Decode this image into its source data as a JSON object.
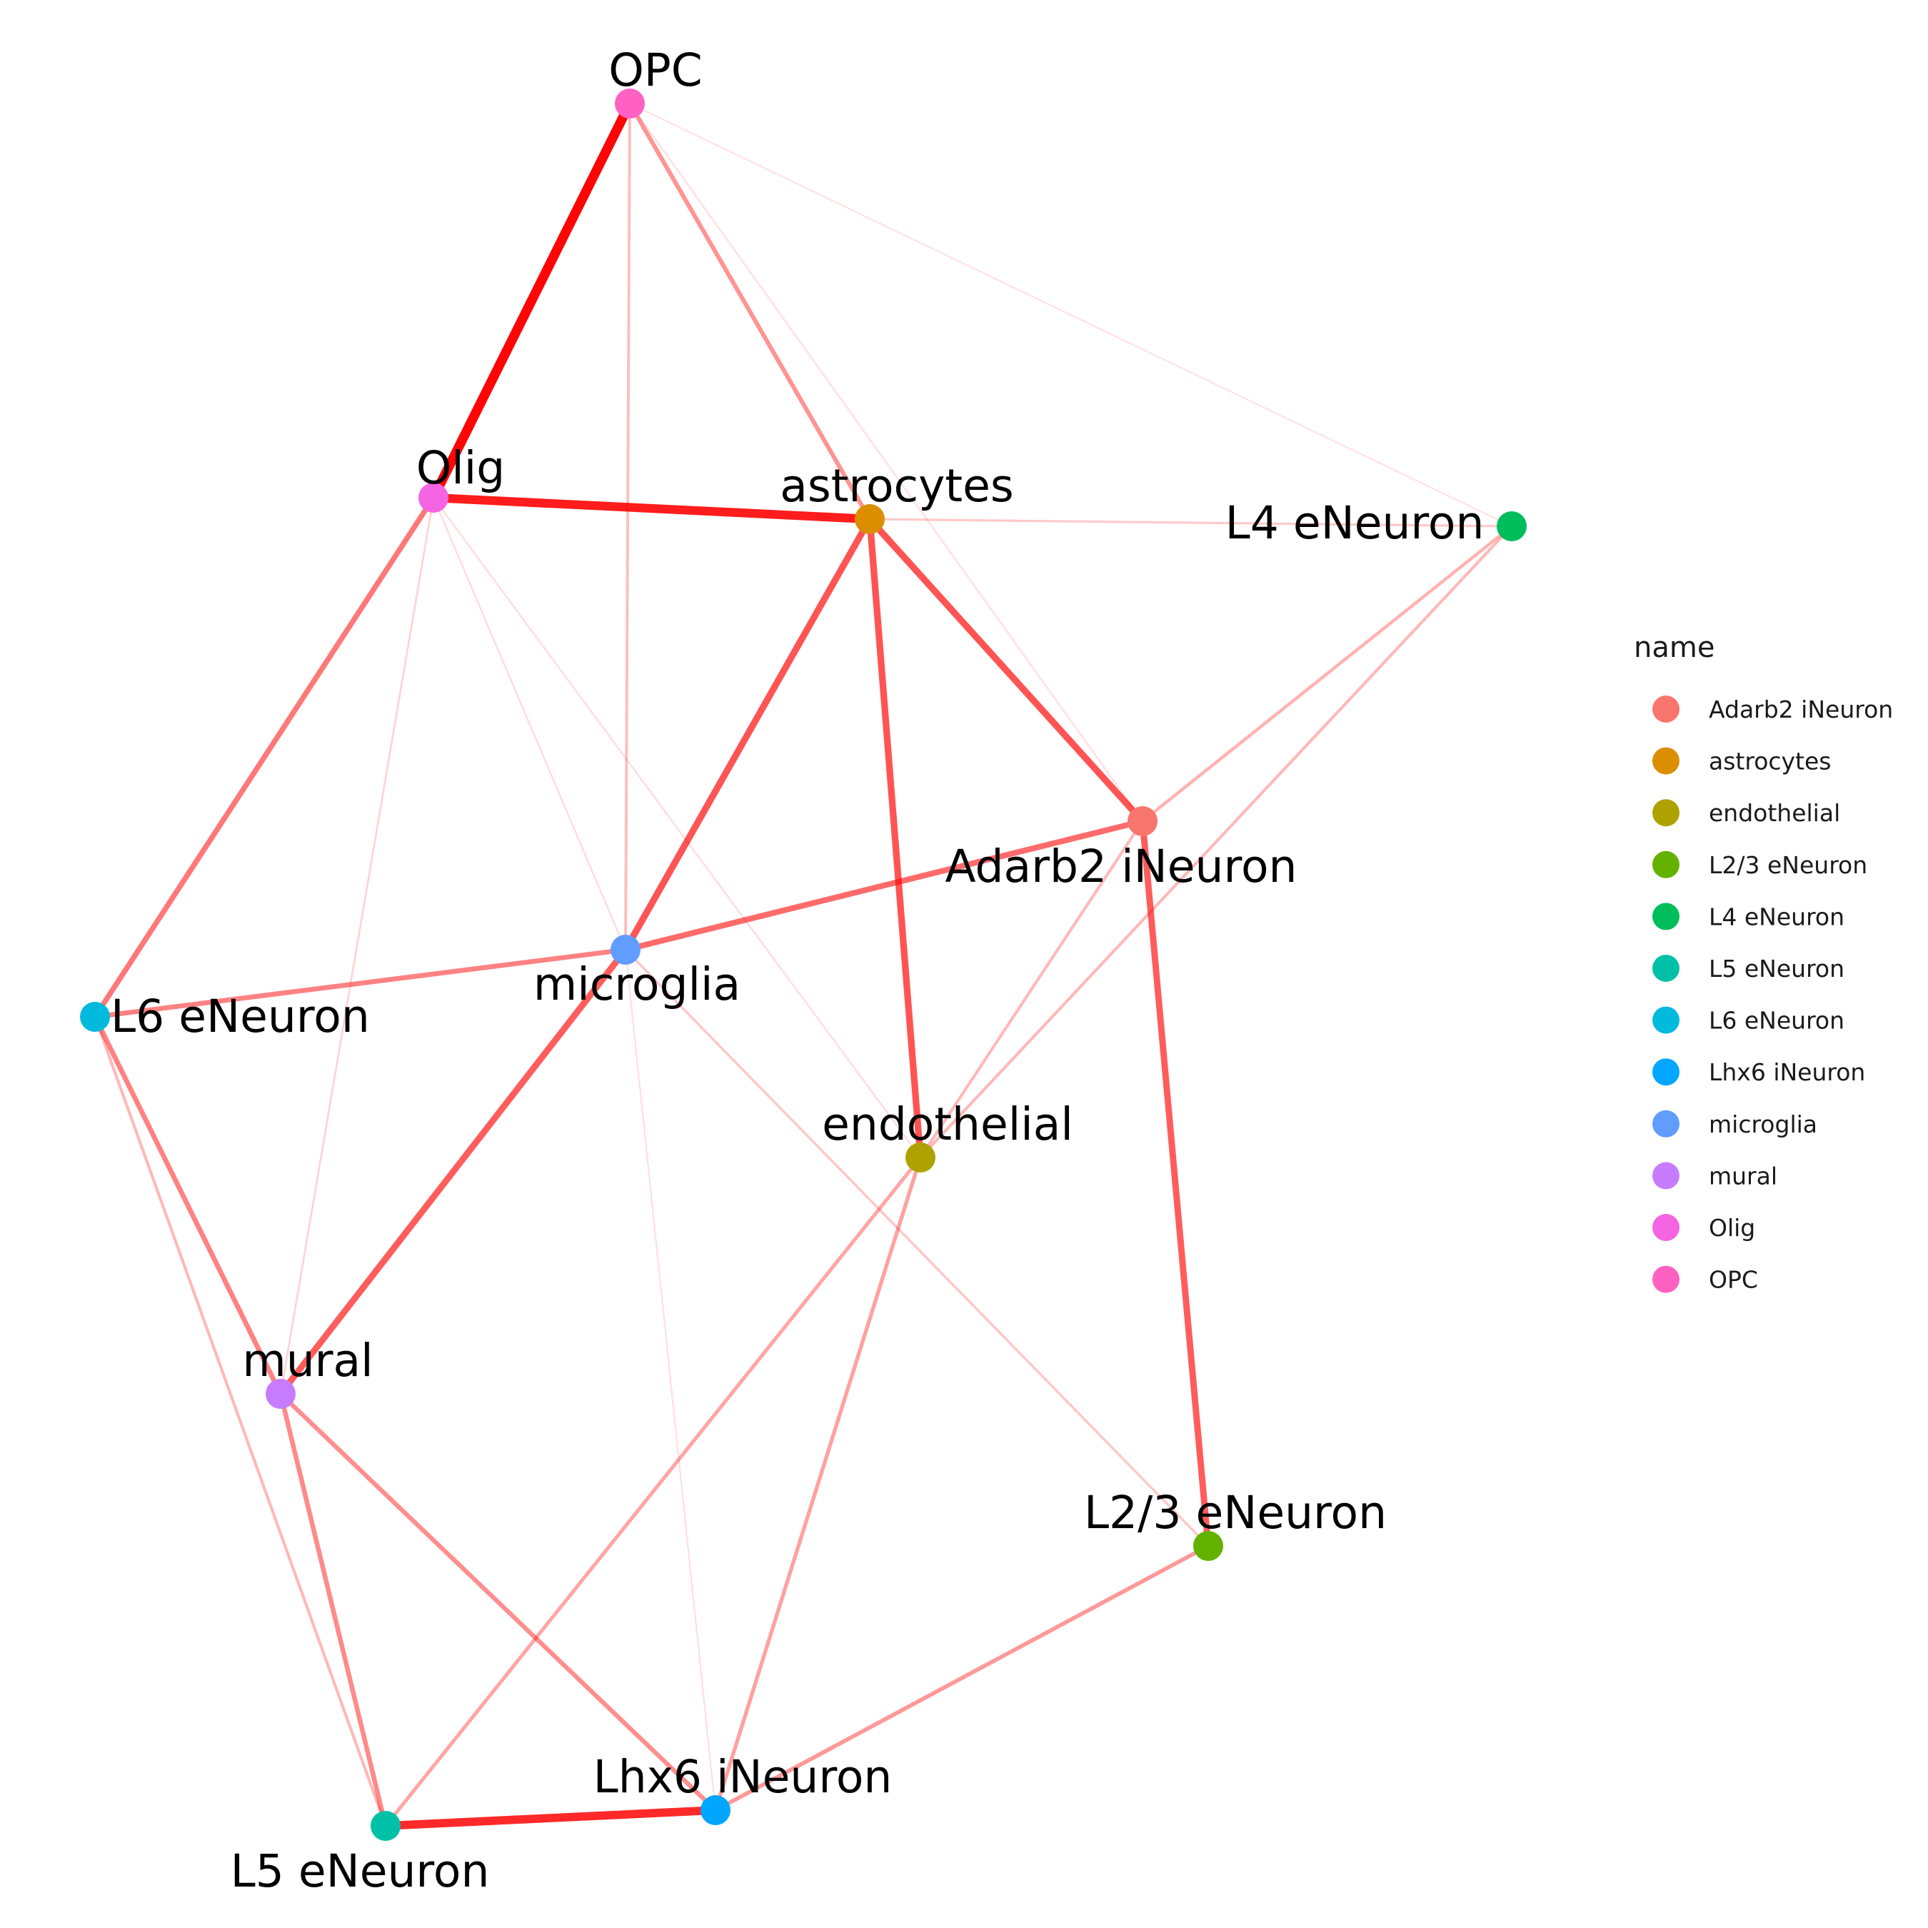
{
  "legend": {
    "title": "name",
    "items": [
      {
        "label": "Adarb2 iNeuron",
        "color": "#F8766D"
      },
      {
        "label": "astrocytes",
        "color": "#DB8E00"
      },
      {
        "label": "endothelial",
        "color": "#AEA200"
      },
      {
        "label": "L2/3 eNeuron",
        "color": "#64B200"
      },
      {
        "label": "L4 eNeuron",
        "color": "#00BD5C"
      },
      {
        "label": "L5 eNeuron",
        "color": "#00C1A7"
      },
      {
        "label": "L6 eNeuron",
        "color": "#00BADE"
      },
      {
        "label": "Lhx6 iNeuron",
        "color": "#00A6FF"
      },
      {
        "label": "microglia",
        "color": "#619CFF"
      },
      {
        "label": "mural",
        "color": "#C77CFF"
      },
      {
        "label": "Olig",
        "color": "#F564E3"
      },
      {
        "label": "OPC",
        "color": "#FF61C3"
      }
    ]
  },
  "nodes": [
    {
      "id": "opc",
      "label": "OPC",
      "color": "#FF61C3"
    },
    {
      "id": "olig",
      "label": "Olig",
      "color": "#F564E3"
    },
    {
      "id": "astro",
      "label": "astrocytes",
      "color": "#DB8E00"
    },
    {
      "id": "l4",
      "label": "L4 eNeuron",
      "color": "#00BD5C"
    },
    {
      "id": "adarb2",
      "label": "Adarb2 iNeuron",
      "color": "#F8766D"
    },
    {
      "id": "micro",
      "label": "microglia",
      "color": "#619CFF"
    },
    {
      "id": "l6",
      "label": "L6 eNeuron",
      "color": "#00BADE"
    },
    {
      "id": "endo",
      "label": "endothelial",
      "color": "#AEA200"
    },
    {
      "id": "mural",
      "label": "mural",
      "color": "#C77CFF"
    },
    {
      "id": "l23",
      "label": "L2/3 eNeuron",
      "color": "#64B200"
    },
    {
      "id": "lhx6",
      "label": "Lhx6 iNeuron",
      "color": "#00A6FF"
    },
    {
      "id": "l5",
      "label": "L5 eNeuron",
      "color": "#00C1A7"
    }
  ],
  "edges": [
    {
      "from": "opc",
      "to": "olig",
      "weight": 1.0
    },
    {
      "from": "olig",
      "to": "astro",
      "weight": 0.9
    },
    {
      "from": "l5",
      "to": "lhx6",
      "weight": 0.85
    },
    {
      "from": "astro",
      "to": "micro",
      "weight": 0.65
    },
    {
      "from": "astro",
      "to": "adarb2",
      "weight": 0.65
    },
    {
      "from": "astro",
      "to": "endo",
      "weight": 0.65
    },
    {
      "from": "micro",
      "to": "mural",
      "weight": 0.62
    },
    {
      "from": "adarb2",
      "to": "l23",
      "weight": 0.62
    },
    {
      "from": "micro",
      "to": "adarb2",
      "weight": 0.55
    },
    {
      "from": "olig",
      "to": "l6",
      "weight": 0.5
    },
    {
      "from": "l6",
      "to": "micro",
      "weight": 0.45
    },
    {
      "from": "l6",
      "to": "mural",
      "weight": 0.45
    },
    {
      "from": "mural",
      "to": "l5",
      "weight": 0.42
    },
    {
      "from": "mural",
      "to": "lhx6",
      "weight": 0.4
    },
    {
      "from": "opc",
      "to": "astro",
      "weight": 0.38
    },
    {
      "from": "lhx6",
      "to": "l23",
      "weight": 0.35
    },
    {
      "from": "endo",
      "to": "lhx6",
      "weight": 0.32
    },
    {
      "from": "endo",
      "to": "l5",
      "weight": 0.3
    },
    {
      "from": "l4",
      "to": "adarb2",
      "weight": 0.25
    },
    {
      "from": "l4",
      "to": "endo",
      "weight": 0.22
    },
    {
      "from": "adarb2",
      "to": "endo",
      "weight": 0.22
    },
    {
      "from": "l6",
      "to": "l5",
      "weight": 0.22
    },
    {
      "from": "opc",
      "to": "micro",
      "weight": 0.2
    },
    {
      "from": "micro",
      "to": "l23",
      "weight": 0.16
    },
    {
      "from": "astro",
      "to": "l4",
      "weight": 0.14
    },
    {
      "from": "olig",
      "to": "mural",
      "weight": 0.1
    },
    {
      "from": "olig",
      "to": "micro",
      "weight": 0.07
    },
    {
      "from": "olig",
      "to": "endo",
      "weight": 0.07
    },
    {
      "from": "micro",
      "to": "lhx6",
      "weight": 0.06
    },
    {
      "from": "opc",
      "to": "adarb2",
      "weight": 0.06
    },
    {
      "from": "opc",
      "to": "l4",
      "weight": 0.04
    }
  ]
}
